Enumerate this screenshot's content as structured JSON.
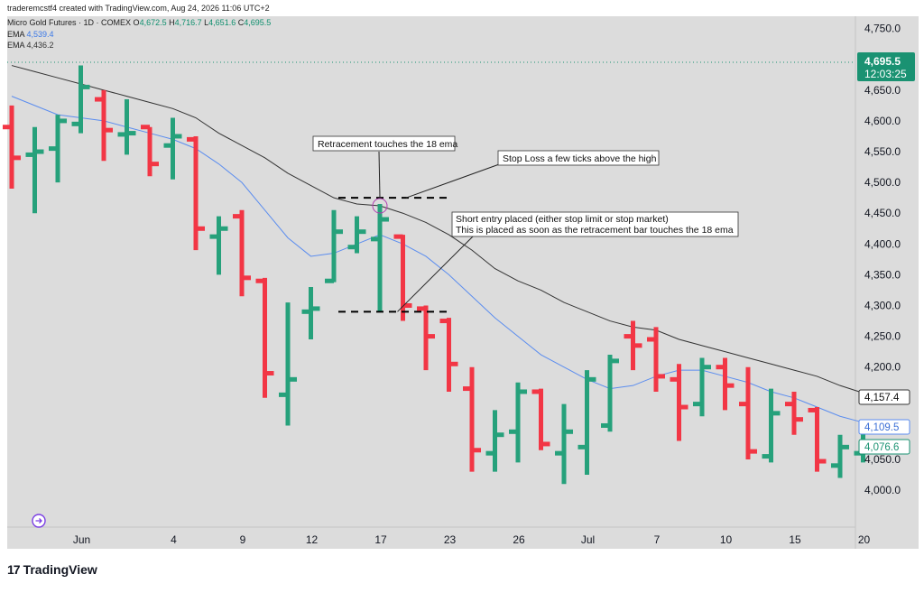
{
  "header": {
    "attribution": "traderemcstf4 created with TradingView.com, Aug 24, 2026 11:06 UTC+2",
    "symbol": "Micro Gold Futures · 1D · COMEX",
    "ohlc": {
      "o_label": "O",
      "o": "4,672.5",
      "h_label": "H",
      "h": "4,716.7",
      "l_label": "L",
      "l": "4,651.6",
      "c_label": "C",
      "c": "4,695.5"
    },
    "ema_fast": {
      "label": "EMA",
      "value": "4,539.4"
    },
    "ema_slow": {
      "label": "EMA",
      "value": "4,436.2"
    }
  },
  "brand": {
    "logo": "17",
    "name": "TradingView"
  },
  "colors": {
    "up": "#26a17b",
    "down": "#f23645",
    "ema_fast": "#5b8def",
    "ema_slow": "#333333",
    "price_tag": "#1a9272",
    "plot_bg": "#dcdcdc",
    "page_bg": "#ffffff"
  },
  "price_tags": {
    "last": {
      "value": "4,695.5",
      "time": "12:03:25"
    },
    "ema_slow": "4,157.4",
    "ema_fast": "4,109.5",
    "close": "4,076.6"
  },
  "chart_data": {
    "type": "ohlc_bar",
    "ylim": [
      3940,
      4770
    ],
    "y_ticks": [
      4000,
      4050,
      4100,
      4150,
      4200,
      4250,
      4300,
      4350,
      4400,
      4450,
      4500,
      4550,
      4600,
      4650,
      4700,
      4750
    ],
    "y_tick_labels": [
      "4,000.0",
      "4,050.0",
      "",
      "",
      "4,200.0",
      "4,250.0",
      "4,300.0",
      "4,350.0",
      "4,400.0",
      "4,450.0",
      "4,500.0",
      "4,550.0",
      "4,600.0",
      "4,650.0",
      "",
      "4,750.0"
    ],
    "x_ticks": [
      {
        "bar": 3,
        "label": "Jun"
      },
      {
        "bar": 7,
        "label": "4"
      },
      {
        "bar": 10,
        "label": "9"
      },
      {
        "bar": 13,
        "label": "12"
      },
      {
        "bar": 16,
        "label": "17"
      },
      {
        "bar": 19,
        "label": "23"
      },
      {
        "bar": 22,
        "label": "26"
      },
      {
        "bar": 25,
        "label": "Jul"
      },
      {
        "bar": 28,
        "label": "7"
      },
      {
        "bar": 31,
        "label": "10"
      },
      {
        "bar": 34,
        "label": "15"
      },
      {
        "bar": 37,
        "label": "20"
      }
    ],
    "bars": [
      {
        "o": 4590,
        "h": 4625,
        "l": 4490,
        "c": 4540
      },
      {
        "o": 4545,
        "h": 4590,
        "l": 4450,
        "c": 4550
      },
      {
        "o": 4555,
        "h": 4610,
        "l": 4500,
        "c": 4600
      },
      {
        "o": 4595,
        "h": 4690,
        "l": 4580,
        "c": 4655
      },
      {
        "o": 4635,
        "h": 4650,
        "l": 4535,
        "c": 4585
      },
      {
        "o": 4578,
        "h": 4635,
        "l": 4545,
        "c": 4580
      },
      {
        "o": 4590,
        "h": 4590,
        "l": 4510,
        "c": 4530
      },
      {
        "o": 4560,
        "h": 4605,
        "l": 4505,
        "c": 4575
      },
      {
        "o": 4570,
        "h": 4575,
        "l": 4390,
        "c": 4425
      },
      {
        "o": 4412,
        "h": 4445,
        "l": 4350,
        "c": 4425
      },
      {
        "o": 4445,
        "h": 4455,
        "l": 4315,
        "c": 4345
      },
      {
        "o": 4340,
        "h": 4345,
        "l": 4150,
        "c": 4190
      },
      {
        "o": 4155,
        "h": 4305,
        "l": 4105,
        "c": 4180
      },
      {
        "o": 4290,
        "h": 4330,
        "l": 4245,
        "c": 4295
      },
      {
        "o": 4340,
        "h": 4455,
        "l": 4338,
        "c": 4420
      },
      {
        "o": 4395,
        "h": 4445,
        "l": 4385,
        "c": 4420
      },
      {
        "o": 4408,
        "h": 4465,
        "l": 4290,
        "c": 4440
      },
      {
        "o": 4412,
        "h": 4415,
        "l": 4275,
        "c": 4300
      },
      {
        "o": 4295,
        "h": 4300,
        "l": 4195,
        "c": 4250
      },
      {
        "o": 4275,
        "h": 4280,
        "l": 4160,
        "c": 4205
      },
      {
        "o": 4165,
        "h": 4200,
        "l": 4030,
        "c": 4065
      },
      {
        "o": 4060,
        "h": 4130,
        "l": 4030,
        "c": 4090
      },
      {
        "o": 4095,
        "h": 4175,
        "l": 4045,
        "c": 4160
      },
      {
        "o": 4160,
        "h": 4165,
        "l": 4065,
        "c": 4075
      },
      {
        "o": 4060,
        "h": 4140,
        "l": 4010,
        "c": 4095
      },
      {
        "o": 4070,
        "h": 4195,
        "l": 4025,
        "c": 4180
      },
      {
        "o": 4105,
        "h": 4220,
        "l": 4095,
        "c": 4210
      },
      {
        "o": 4250,
        "h": 4275,
        "l": 4195,
        "c": 4235
      },
      {
        "o": 4245,
        "h": 4265,
        "l": 4160,
        "c": 4185
      },
      {
        "o": 4180,
        "h": 4205,
        "l": 4080,
        "c": 4135
      },
      {
        "o": 4140,
        "h": 4215,
        "l": 4120,
        "c": 4200
      },
      {
        "o": 4200,
        "h": 4215,
        "l": 4130,
        "c": 4170
      },
      {
        "o": 4140,
        "h": 4200,
        "l": 4050,
        "c": 4063
      },
      {
        "o": 4055,
        "h": 4165,
        "l": 4045,
        "c": 4125
      },
      {
        "o": 4140,
        "h": 4160,
        "l": 4090,
        "c": 4115
      },
      {
        "o": 4130,
        "h": 4135,
        "l": 4030,
        "c": 4047
      },
      {
        "o": 4040,
        "h": 4090,
        "l": 4020,
        "c": 4070
      },
      {
        "o": 4060,
        "h": 4110,
        "l": 4045,
        "c": 4077
      }
    ],
    "ema_fast": [
      4640,
      4625,
      4610,
      4605,
      4600,
      4590,
      4580,
      4570,
      4555,
      4530,
      4500,
      4455,
      4410,
      4380,
      4385,
      4400,
      4415,
      4400,
      4380,
      4350,
      4315,
      4280,
      4250,
      4220,
      4200,
      4180,
      4165,
      4170,
      4185,
      4195,
      4195,
      4185,
      4175,
      4160,
      4150,
      4135,
      4120,
      4110
    ],
    "ema_slow": [
      4690,
      4680,
      4670,
      4660,
      4650,
      4640,
      4630,
      4620,
      4605,
      4580,
      4560,
      4540,
      4515,
      4495,
      4475,
      4465,
      4462,
      4450,
      4435,
      4415,
      4390,
      4360,
      4340,
      4325,
      4305,
      4290,
      4275,
      4265,
      4260,
      4245,
      4235,
      4225,
      4215,
      4205,
      4195,
      4185,
      4170,
      4158
    ],
    "annotations": {
      "retrace_label": "Retracement touches the 18 ema",
      "stop_loss_label": "Stop Loss a few ticks above the high",
      "entry_label_line1": "Short entry placed (either stop limit or stop market)",
      "entry_label_line2": "This is placed as soon as the retracement bar touches the 18 ema",
      "stop_level": 4475,
      "entry_level": 4290
    }
  }
}
